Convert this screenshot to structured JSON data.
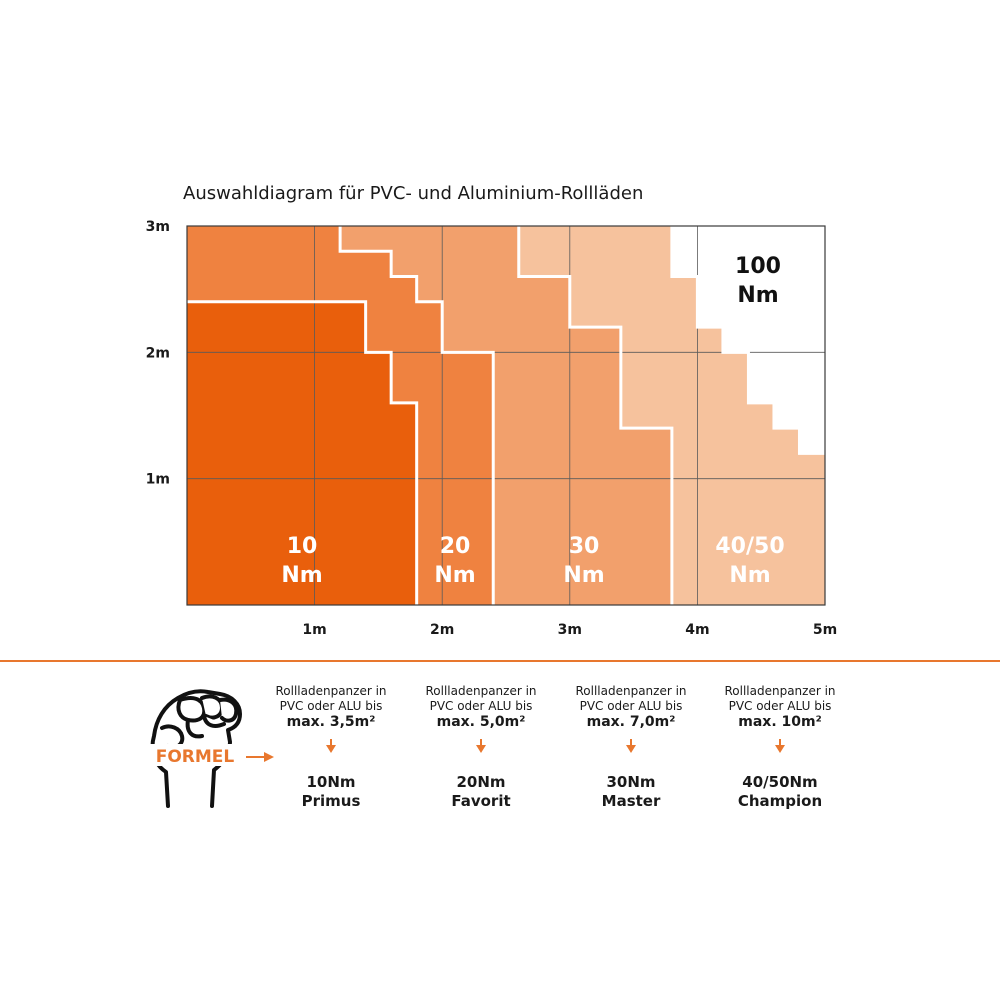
{
  "chart_data": {
    "type": "area",
    "title": "Auswahldiagram für PVC- und Aluminium-Rollläden",
    "xlabel": "",
    "ylabel": "",
    "xlim": [
      0,
      5
    ],
    "ylim": [
      0,
      3
    ],
    "x_unit": "m",
    "y_unit": "m",
    "x_ticks": [
      "1m",
      "2m",
      "3m",
      "4m",
      "5m"
    ],
    "y_ticks": [
      "1m",
      "2m",
      "3m"
    ],
    "grid": true,
    "zones": [
      {
        "top": "10",
        "bottom": "Nm",
        "color": "#e95f0c",
        "boundary": [
          [
            0,
            2.4
          ],
          [
            1.4,
            2.4
          ],
          [
            1.4,
            2.0
          ],
          [
            1.6,
            2.0
          ],
          [
            1.6,
            1.6
          ],
          [
            1.8,
            1.6
          ],
          [
            1.8,
            0
          ]
        ]
      },
      {
        "top": "20",
        "bottom": "Nm",
        "color": "#ef8240",
        "boundary": [
          [
            1.2,
            3.0
          ],
          [
            1.2,
            2.8
          ],
          [
            1.6,
            2.8
          ],
          [
            1.6,
            2.6
          ],
          [
            1.8,
            2.6
          ],
          [
            1.8,
            2.4
          ],
          [
            2.0,
            2.4
          ],
          [
            2.0,
            2.0
          ],
          [
            2.4,
            2.0
          ],
          [
            2.4,
            0
          ]
        ]
      },
      {
        "top": "30",
        "bottom": "Nm",
        "color": "#f2a06c",
        "boundary": [
          [
            2.6,
            3.0
          ],
          [
            2.6,
            2.6
          ],
          [
            3.0,
            2.6
          ],
          [
            3.0,
            2.2
          ],
          [
            3.4,
            2.2
          ],
          [
            3.4,
            1.4
          ],
          [
            3.8,
            1.4
          ],
          [
            3.8,
            0
          ]
        ]
      },
      {
        "top": "40/50",
        "bottom": "Nm",
        "color": "#f6c29d",
        "boundary": [
          [
            3.8,
            3.0
          ],
          [
            3.8,
            2.6
          ],
          [
            4.0,
            2.6
          ],
          [
            4.0,
            2.2
          ],
          [
            4.2,
            2.2
          ],
          [
            4.2,
            2.0
          ],
          [
            4.4,
            2.0
          ],
          [
            4.4,
            1.6
          ],
          [
            4.6,
            1.6
          ],
          [
            4.6,
            1.4
          ],
          [
            4.8,
            1.4
          ],
          [
            4.8,
            1.2
          ],
          [
            5.0,
            1.2
          ]
        ]
      },
      {
        "top": "100",
        "bottom": "Nm",
        "color": "#ffffff"
      }
    ]
  },
  "legend": {
    "brand": "FORMEL",
    "items": [
      {
        "desc1": "Rollladenpanzer in",
        "desc2": "PVC oder ALU bis",
        "area": "max. 3,5m²",
        "product1": "10Nm",
        "product2": "Primus"
      },
      {
        "desc1": "Rollladenpanzer in",
        "desc2": "PVC oder ALU bis",
        "area": "max. 5,0m²",
        "product1": "20Nm",
        "product2": "Favorit"
      },
      {
        "desc1": "Rollladenpanzer in",
        "desc2": "PVC oder ALU bis",
        "area": "max. 7,0m²",
        "product1": "30Nm",
        "product2": "Master"
      },
      {
        "desc1": "Rollladenpanzer in",
        "desc2": "PVC oder ALU bis",
        "area": "max. 10m²",
        "product1": "40/50Nm",
        "product2": "Champion"
      }
    ]
  },
  "colors": {
    "accent": "#e8772e",
    "zone10": "#e95f0c",
    "zone20": "#ef8240",
    "zone30": "#f2a06c",
    "zone40": "#f6c29d",
    "grid": "#5a5a5a"
  }
}
